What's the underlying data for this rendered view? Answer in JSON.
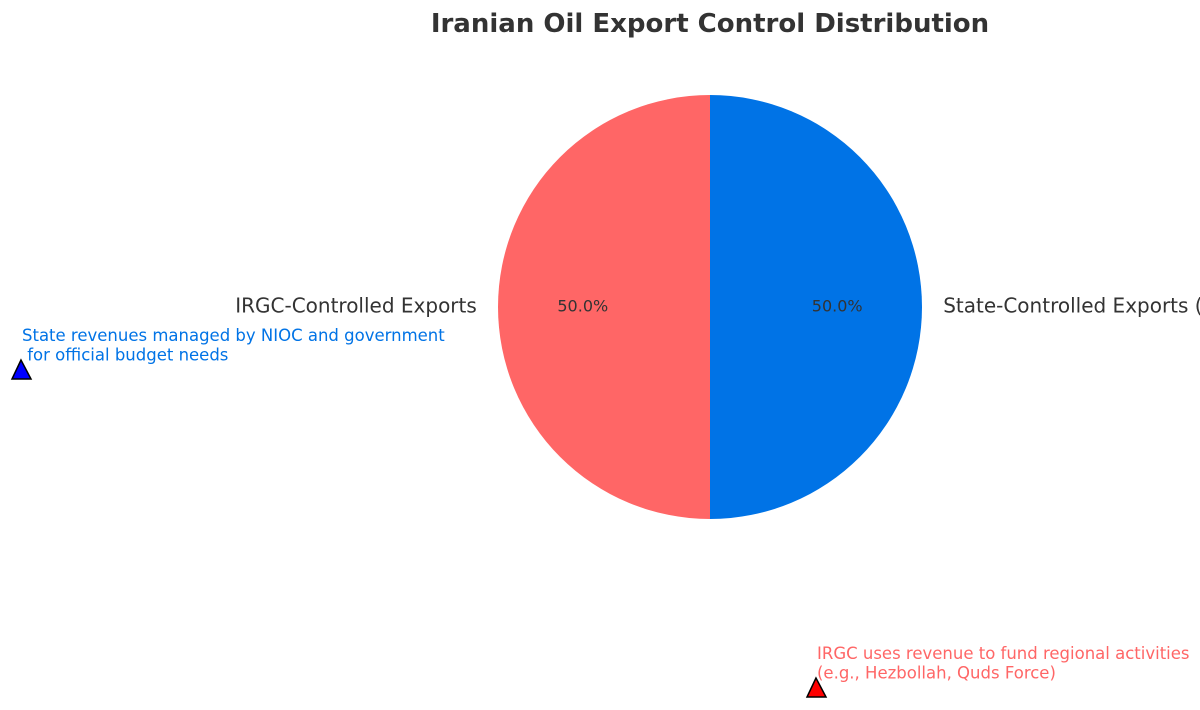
{
  "chart_data": {
    "type": "pie",
    "title": "Iranian Oil Export Control Distribution",
    "slices": [
      {
        "label": "State-Controlled Exports (NIOC)",
        "value": 50.0,
        "percent_label": "50.0%",
        "color": "#0073E6"
      },
      {
        "label": "IRGC-Controlled Exports",
        "value": 50.0,
        "percent_label": "50.0%",
        "color": "#FF6666"
      }
    ],
    "start_angle_deg": 90,
    "direction": "clockwise",
    "legend": "none",
    "annotations": [
      {
        "lines": [
          "State revenues managed by NIOC and government",
          " for official budget needs"
        ],
        "text_color": "#0073E6",
        "marker": "triangle",
        "marker_color": "#0000FF"
      },
      {
        "lines": [
          "IRGC uses revenue to fund regional activities",
          "(e.g., Hezbollah, Quds Force)"
        ],
        "text_color": "#FF6666",
        "marker": "triangle",
        "marker_color": "#FF0000"
      }
    ]
  }
}
